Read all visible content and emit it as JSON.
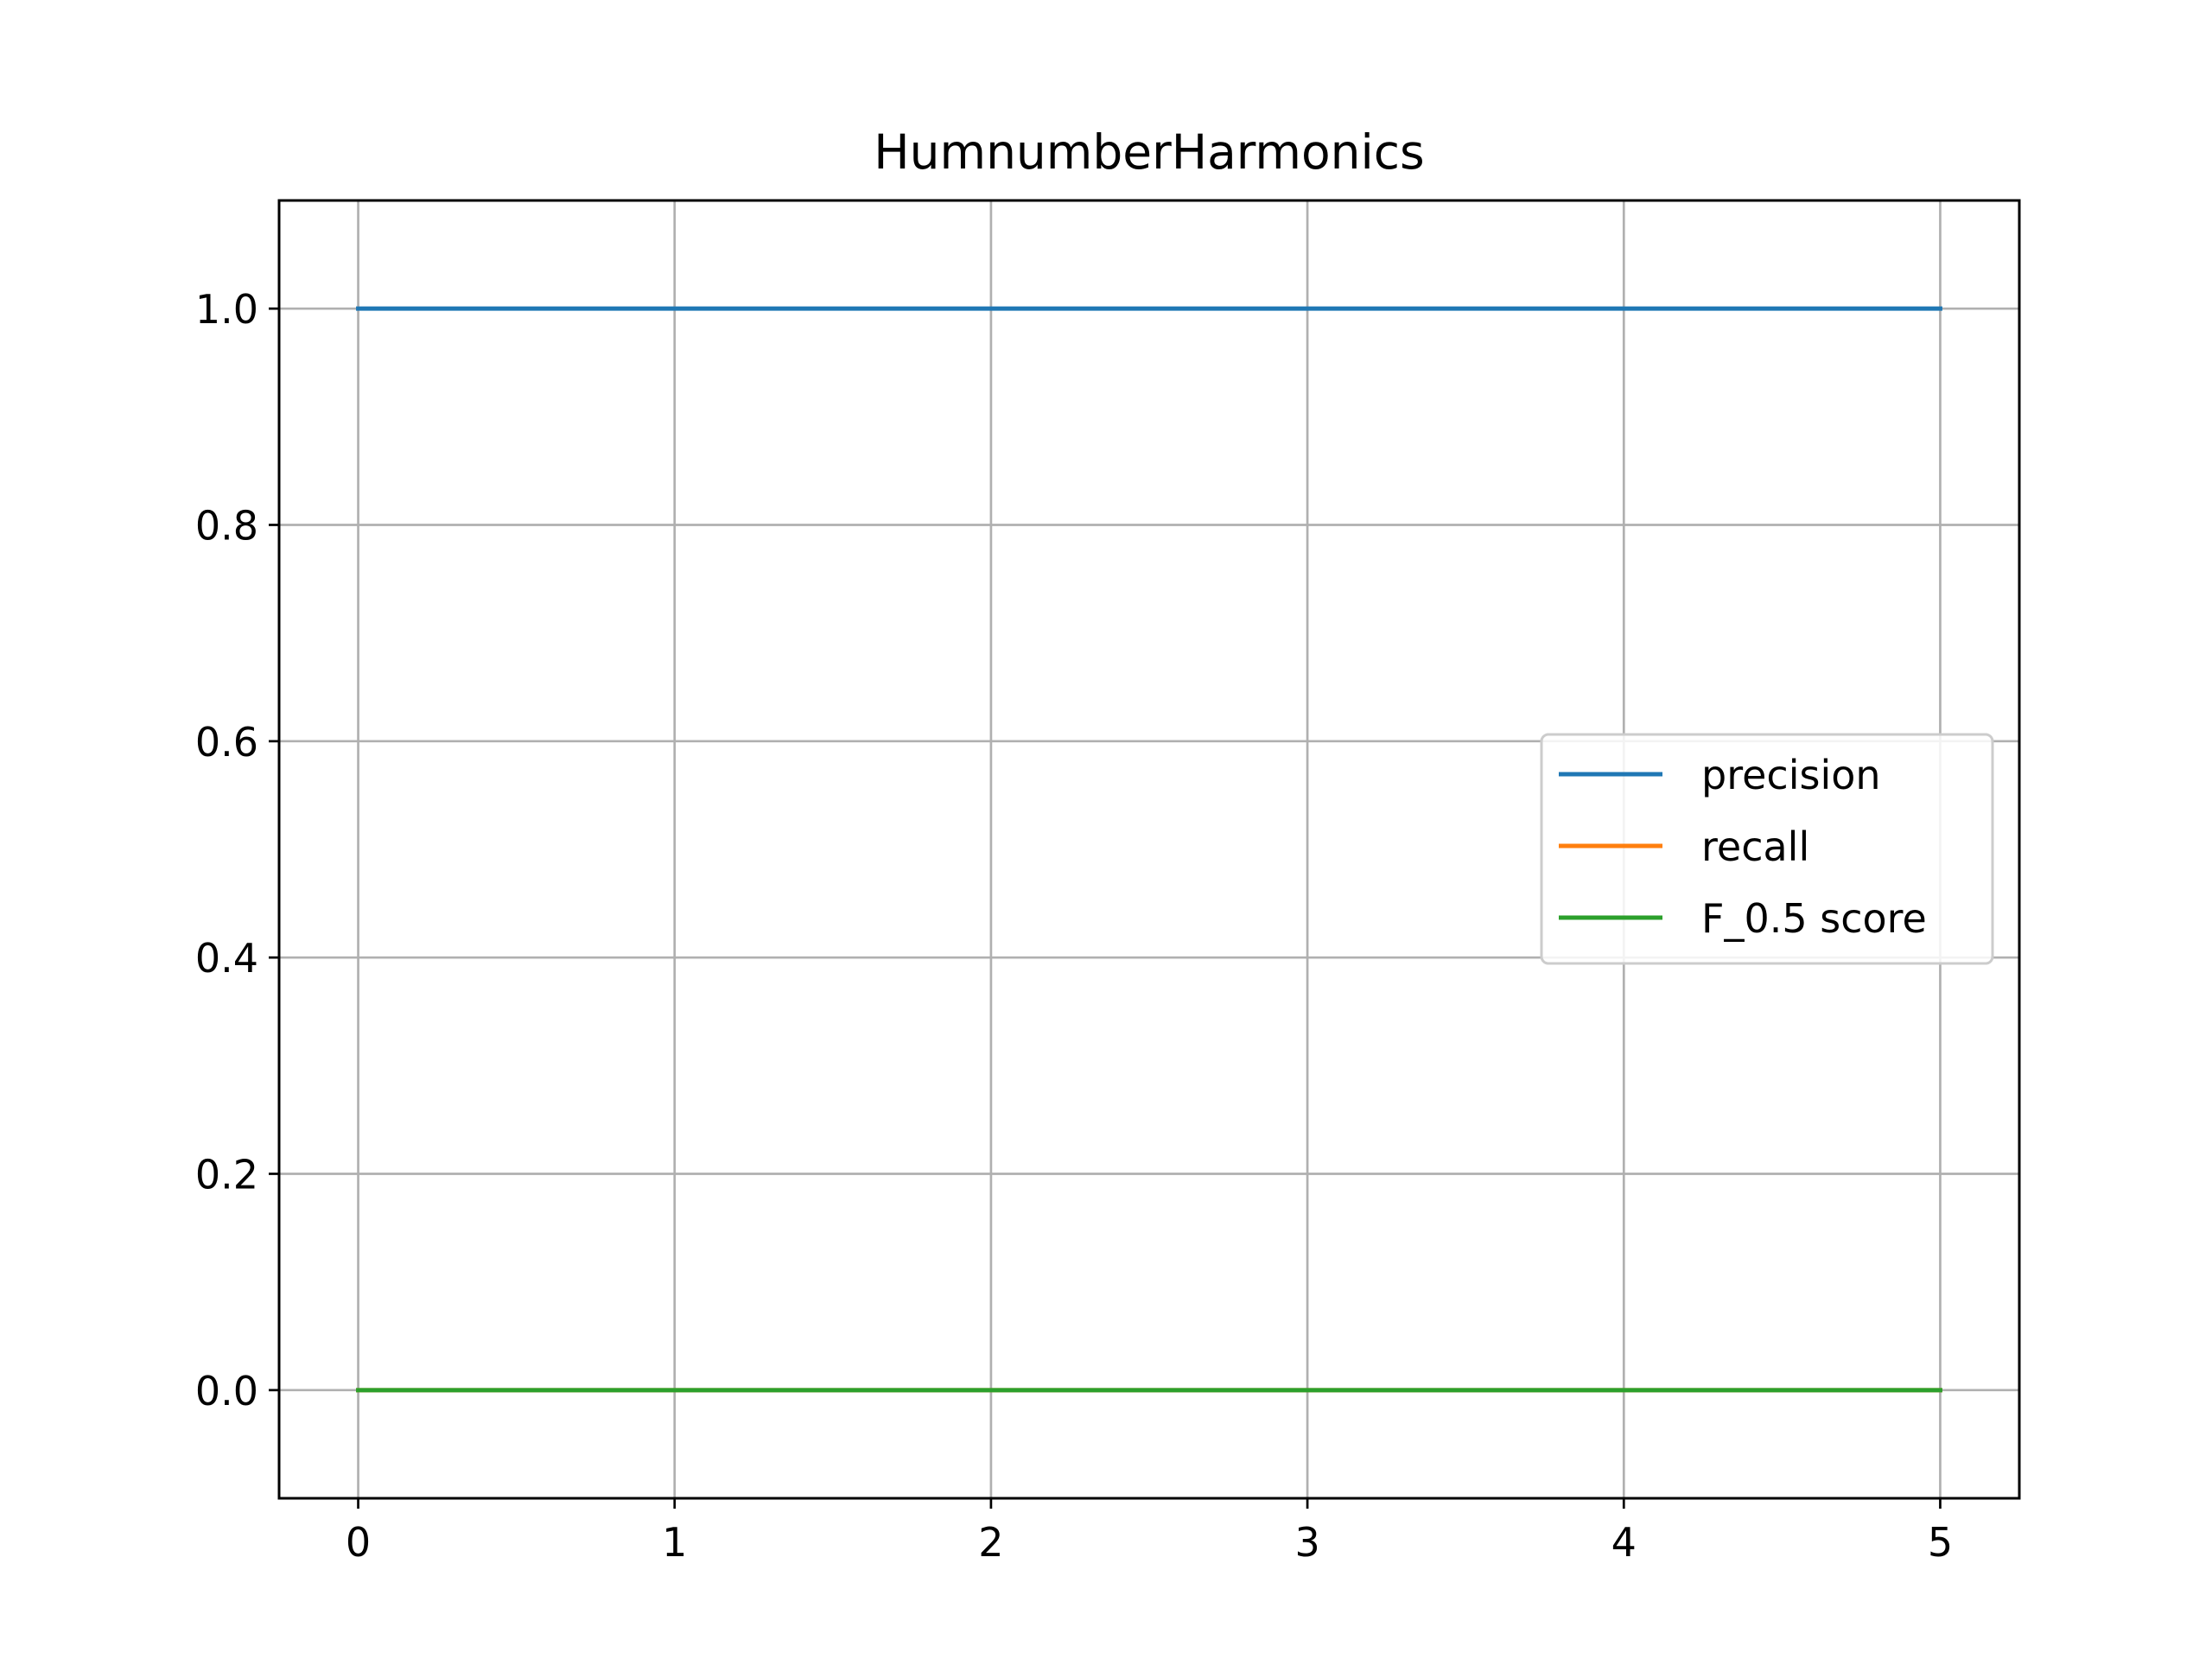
{
  "chart_data": {
    "type": "line",
    "title": "HumnumberHarmonics",
    "xlabel": "",
    "ylabel": "",
    "x": [
      0,
      1,
      2,
      3,
      4,
      5
    ],
    "xlim": [
      -0.25,
      5.25
    ],
    "ylim": [
      -0.1,
      1.1
    ],
    "xticks": [
      "0",
      "1",
      "2",
      "3",
      "4",
      "5"
    ],
    "yticks": [
      "0.0",
      "0.2",
      "0.4",
      "0.6",
      "0.8",
      "1.0"
    ],
    "grid": true,
    "legend_position": "center-right",
    "series": [
      {
        "name": "precision",
        "color": "#1f77b4",
        "values": [
          1.0,
          1.0,
          1.0,
          1.0,
          1.0,
          1.0
        ]
      },
      {
        "name": "recall",
        "color": "#ff7f0e",
        "values": [
          0.0,
          0.0,
          0.0,
          0.0,
          0.0,
          0.0
        ]
      },
      {
        "name": "F_0.5 score",
        "color": "#2ca02c",
        "values": [
          0.0,
          0.0,
          0.0,
          0.0,
          0.0,
          0.0
        ]
      }
    ]
  }
}
